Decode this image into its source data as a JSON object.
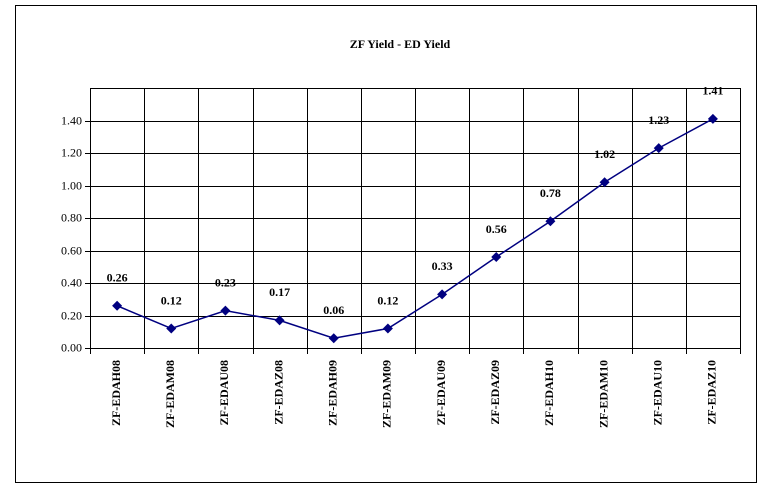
{
  "chart_data": {
    "type": "line",
    "title": "ZF Yield - ED Yield",
    "categories": [
      "ZF-EDAH08",
      "ZF-EDAM08",
      "ZF-EDAU08",
      "ZF-EDAZ08",
      "ZF-EDAH09",
      "ZF-EDAM09",
      "ZF-EDAU09",
      "ZF-EDAZ09",
      "ZF-EDAH10",
      "ZF-EDAM10",
      "ZF-EDAU10",
      "ZF-EDAZ10"
    ],
    "values": [
      0.26,
      0.12,
      0.23,
      0.17,
      0.06,
      0.12,
      0.33,
      0.56,
      0.78,
      1.02,
      1.23,
      1.41
    ],
    "color": "#000080",
    "ylim": [
      0,
      1.6
    ],
    "yticks": [
      {
        "value": 0,
        "label": "0.00"
      },
      {
        "value": 0.2,
        "label": "0.20"
      },
      {
        "value": 0.4,
        "label": "0.40"
      },
      {
        "value": 0.6,
        "label": "0.60"
      },
      {
        "value": 0.8,
        "label": "0.80"
      },
      {
        "value": 1.0,
        "label": "1.00"
      },
      {
        "value": 1.2,
        "label": "1.20"
      },
      {
        "value": 1.4,
        "label": "1.40"
      }
    ],
    "grid": true
  }
}
